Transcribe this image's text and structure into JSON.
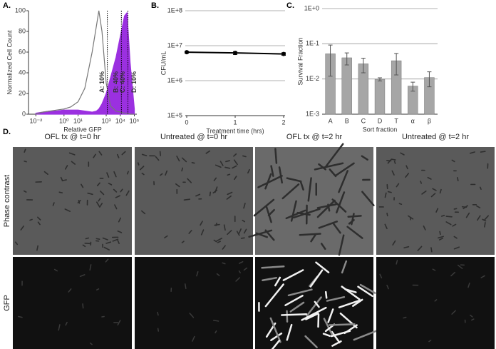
{
  "chart_data": [
    {
      "type": "area",
      "panel_label": "A.",
      "x_label": "Relative GFP",
      "y_label": "Normalized Cell Count",
      "xscale": "log",
      "xlim": [
        0.003,
        150000
      ],
      "xticks": [
        {
          "value": 0.01,
          "label": "10⁻²"
        },
        {
          "value": 1,
          "label": "10⁰"
        },
        {
          "value": 10,
          "label": "10¹"
        },
        {
          "value": 1000,
          "label": "10³"
        },
        {
          "value": 10000,
          "label": "10⁴"
        },
        {
          "value": 100000,
          "label": "10⁵"
        }
      ],
      "ylim": [
        0,
        100
      ],
      "yticks": [
        0,
        20,
        40,
        60,
        80,
        100
      ],
      "grid": false,
      "x": [
        0.01,
        0.03,
        0.1,
        0.3,
        1,
        3,
        10,
        30,
        100,
        200,
        300,
        500,
        1000,
        2000,
        5000,
        10000,
        20000,
        30000,
        50000,
        100000
      ],
      "series": [
        {
          "color": "#9b30e0",
          "fill": true,
          "values": [
            1,
            2,
            3,
            3,
            4,
            4,
            4,
            3,
            2,
            3,
            5,
            10,
            20,
            35,
            55,
            75,
            95,
            98,
            50,
            5
          ]
        },
        {
          "color": "#777777",
          "fill": false,
          "values": [
            0,
            2,
            3,
            4,
            5,
            7,
            12,
            25,
            60,
            85,
            100,
            80,
            30,
            8,
            3,
            2,
            1,
            1,
            0,
            0
          ]
        }
      ],
      "gates": [
        1200,
        12000,
        35000
      ],
      "gate_labels": [
        "A: 10%",
        "B: 40%",
        "C: 40%",
        "D: 10%"
      ]
    },
    {
      "type": "line",
      "panel_label": "B.",
      "x_label": "Treatment time (hrs)",
      "y_label": "CFU/mL",
      "xlim": [
        0,
        2
      ],
      "xticks": [
        0,
        1,
        2
      ],
      "yscale": "log",
      "ylim": [
        100000,
        100000000
      ],
      "yticks": [
        {
          "value": 100000,
          "label": "1E+5"
        },
        {
          "value": 1000000,
          "label": "1E+6"
        },
        {
          "value": 10000000,
          "label": "1E+7"
        },
        {
          "value": 100000000,
          "label": "1E+8"
        }
      ],
      "grid": true,
      "color": "#000000",
      "x": [
        0,
        1,
        2
      ],
      "values": [
        6500000,
        6200000,
        5800000
      ],
      "errors": [
        400000,
        600000,
        500000
      ]
    },
    {
      "type": "bar",
      "panel_label": "C.",
      "x_label": "Sort fraction",
      "y_label": "Survival Fraction",
      "yscale": "log",
      "ylim": [
        0.001,
        1
      ],
      "yticks": [
        {
          "value": 0.001,
          "label": "1E-3"
        },
        {
          "value": 0.01,
          "label": "1E-2"
        },
        {
          "value": 0.1,
          "label": "1E-1"
        },
        {
          "value": 1,
          "label": "1E+0"
        }
      ],
      "grid": true,
      "color": "#a6a6a6",
      "categories": [
        "A",
        "B",
        "C",
        "D",
        "T",
        "α",
        "β"
      ],
      "values": [
        0.052,
        0.04,
        0.027,
        0.0098,
        0.033,
        0.0063,
        0.011
      ],
      "errors": [
        0.04,
        0.015,
        0.012,
        0.001,
        0.02,
        0.0018,
        0.005
      ]
    }
  ],
  "panel_d": {
    "panel_label": "D.",
    "columns": [
      "OFL tx @ t=0 hr",
      "Untreated @ t=0 hr",
      "OFL tx @ t=2 hr",
      "Untreated @ t=2 hr"
    ],
    "rows": [
      "Phase contrast",
      "GFP"
    ]
  }
}
